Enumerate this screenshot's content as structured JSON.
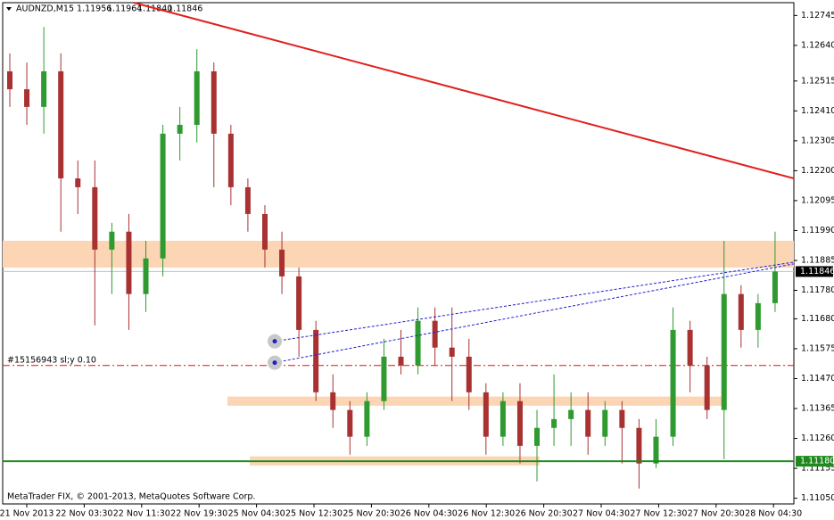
{
  "header": {
    "symbol": "AUDNZD,M15",
    "open": 1.11956,
    "high": 1.11964,
    "low": {
      "value": 1.1184,
      "label": "1.11840"
    },
    "close": 1.11846
  },
  "footer": "MetaTrader FIX, © 2001-2013, MetaQuotes Software Corp.",
  "chart_data": {
    "type": "candlestick",
    "up_color": "#2f9a2f",
    "down_color": "#a83232",
    "ylim": [
      1.1103,
      1.1279
    ],
    "yticks": [
      1.12745,
      {
        "value": 1.1264,
        "label": "1.12640"
      },
      1.12515,
      {
        "value": 1.1241,
        "label": "1.12410"
      },
      1.12305,
      {
        "value": 1.122,
        "label": "1.12200"
      },
      1.12095,
      {
        "value": 1.1199,
        "label": "1.11990"
      },
      1.11885,
      {
        "value": 1.1178,
        "label": "1.11780"
      },
      {
        "value": 1.1168,
        "label": "1.11680"
      },
      1.11575,
      {
        "value": 1.1147,
        "label": "1.11470"
      },
      1.11365,
      {
        "value": 1.1126,
        "label": "1.11260"
      },
      1.11155,
      {
        "value": 1.1105,
        "label": "1.11050"
      }
    ],
    "x_labels": [
      "21 Nov 2013",
      "22 Nov 03:30",
      "22 Nov 11:30",
      "22 Nov 19:30",
      "25 Nov 04:30",
      "25 Nov 12:30",
      "25 Nov 20:30",
      "26 Nov 04:30",
      "26 Nov 12:30",
      "26 Nov 20:30",
      "27 Nov 04:30",
      "27 Nov 12:30",
      "27 Nov 20:30",
      "28 Nov 04:30"
    ],
    "candles": [
      [
        1.12549,
        1.12612,
        1.12424,
        1.12486
      ],
      [
        1.12486,
        1.1258,
        1.12361,
        1.12424
      ],
      [
        1.12424,
        1.12705,
        1.1233,
        1.12549
      ],
      [
        1.12549,
        1.12612,
        1.11986,
        1.12173
      ],
      [
        1.12173,
        1.12236,
        1.12048,
        1.12142
      ],
      [
        1.12142,
        1.12236,
        1.11657,
        1.11923
      ],
      [
        1.11923,
        1.12017,
        1.11767,
        1.11986
      ],
      [
        1.11986,
        1.12048,
        1.11641,
        1.11767
      ],
      [
        1.11767,
        1.11954,
        1.11704,
        1.11892
      ],
      [
        1.11892,
        1.12361,
        1.11829,
        1.1233
      ],
      [
        1.1233,
        1.12424,
        1.12236,
        1.12361
      ],
      [
        1.12361,
        1.12627,
        1.12299,
        1.12549
      ],
      [
        1.12549,
        1.1258,
        1.12142,
        1.1233
      ],
      [
        1.1233,
        1.12361,
        1.12079,
        1.12142
      ],
      [
        1.12142,
        1.12173,
        1.11986,
        1.12048
      ],
      [
        1.12048,
        1.12079,
        1.1186,
        1.11923
      ],
      [
        1.11923,
        1.11986,
        1.11767,
        1.11829
      ],
      [
        1.11829,
        1.1186,
        1.11547,
        1.11641
      ],
      [
        1.11641,
        1.11673,
        1.11391,
        1.11422
      ],
      [
        1.11422,
        1.11485,
        1.11297,
        1.1136
      ],
      [
        1.1136,
        1.11391,
        1.11203,
        1.11266
      ],
      [
        1.11266,
        1.11422,
        1.11234,
        1.11391
      ],
      [
        1.11391,
        1.1161,
        1.1136,
        1.11547
      ],
      [
        1.11547,
        1.11641,
        1.11485,
        1.11516
      ],
      [
        1.11516,
        1.1172,
        1.11485,
        1.11673
      ],
      [
        1.11673,
        1.1172,
        1.11516,
        1.11579
      ],
      [
        1.11579,
        1.1172,
        1.11391,
        1.11547
      ],
      [
        1.11547,
        1.1161,
        1.1136,
        1.11422
      ],
      [
        1.11422,
        1.11454,
        1.11203,
        1.11266
      ],
      [
        1.11266,
        1.11422,
        1.11234,
        1.11391
      ],
      [
        1.11391,
        1.11454,
        1.11172,
        1.11234
      ],
      [
        1.11234,
        1.1136,
        1.11109,
        1.11297
      ],
      [
        1.11297,
        1.11485,
        1.11234,
        1.11328
      ],
      [
        1.11328,
        1.11422,
        1.11234,
        1.1136
      ],
      [
        1.1136,
        1.11422,
        1.11203,
        1.11266
      ],
      [
        1.11266,
        1.11391,
        1.11234,
        1.1136
      ],
      [
        1.1136,
        1.11391,
        1.11172,
        1.11297
      ],
      [
        1.11297,
        1.11328,
        1.11084,
        1.11172
      ],
      [
        1.11172,
        1.11328,
        1.11156,
        1.11266
      ],
      [
        1.11266,
        1.1172,
        1.11234,
        1.11641
      ],
      [
        1.11641,
        1.11673,
        1.11422,
        1.11516
      ],
      [
        1.11516,
        1.11547,
        1.11328,
        1.1136
      ],
      [
        1.1136,
        1.11954,
        1.11187,
        1.11767
      ],
      [
        1.11767,
        1.11798,
        1.11579,
        1.11641
      ],
      [
        1.11641,
        1.11767,
        1.11579,
        1.11735
      ],
      [
        1.11735,
        1.11986,
        1.11704,
        1.11846
      ]
    ],
    "zones": [
      {
        "top": 1.11954,
        "bottom": 1.1186
      },
      {
        "top": 1.11407,
        "bottom": 1.11375
      },
      {
        "top": 1.11197,
        "bottom": 1.11165
      }
    ],
    "zone_color": "#fcd5b4",
    "trendline": {
      "start": 1.1279,
      "end": 1.12173,
      "color": "#e0201e"
    },
    "channel": [
      {
        "start": 1.11601,
        "end": 1.11879
      },
      {
        "start": 1.11526,
        "end": 1.11873
      }
    ],
    "channel_color": "#1f1fd0",
    "order": {
      "label": "#15156943 sl;y 0.10",
      "price": 1.11516,
      "color": "#d01818"
    },
    "support": {
      "price": {
        "value": 1.1118,
        "label": "1.11180"
      },
      "color": "#1e8a1e"
    },
    "current_price": 1.11846
  }
}
